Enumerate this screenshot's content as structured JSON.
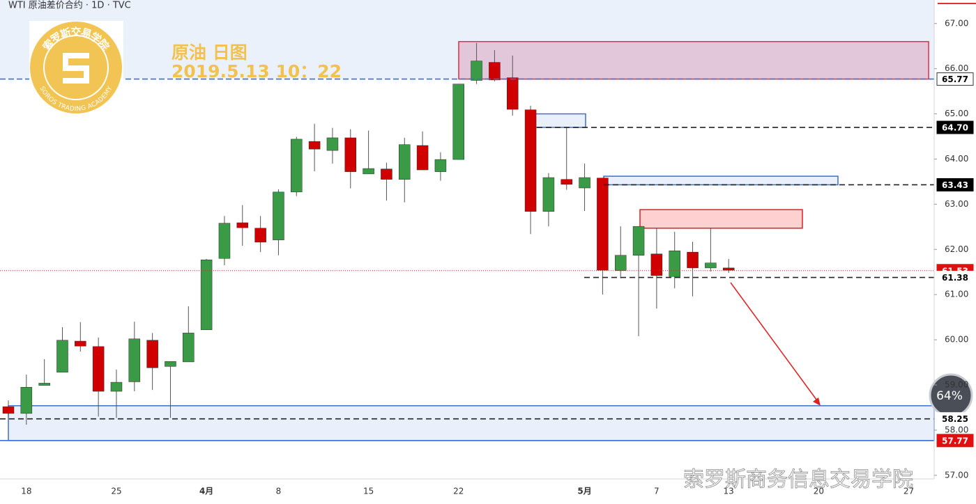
{
  "chart_data": {
    "type": "candlestick",
    "title": "WTI 原油差价合约 · 1D · TVC",
    "annotations": [
      "原油 日图",
      "2019.5.13 10：22"
    ],
    "watermark": "索罗斯商务信息交易学院",
    "logo": {
      "name": "索罗斯交易学院",
      "subtitle": "SOROS TRADING ACADEMY"
    },
    "badge": "64%",
    "up_color": "#3a9a45",
    "down_color": "#d10000",
    "grid": false,
    "categories": [
      null,
      "18",
      null,
      null,
      null,
      null,
      "25",
      null,
      null,
      null,
      null,
      "4月",
      null,
      null,
      null,
      "8",
      null,
      null,
      null,
      null,
      "15",
      null,
      null,
      null,
      null,
      "22",
      null,
      null,
      null,
      null,
      null,
      null,
      "5月",
      null,
      null,
      null,
      "7",
      null,
      null,
      null,
      "13",
      null,
      null,
      null,
      null,
      "20",
      null,
      null,
      null,
      null,
      "27"
    ],
    "open": [
      58.52,
      58.37,
      58.99,
      59.28,
      59.97,
      59.85,
      58.86,
      59.07,
      59.99,
      59.41,
      59.51,
      60.22,
      61.8,
      62.59,
      62.47,
      62.21,
      63.27,
      64.39,
      64.19,
      64.47,
      63.67,
      63.78,
      63.55,
      64.3,
      63.72,
      63.99,
      65.74,
      66.14,
      65.8,
      65.09,
      62.84,
      63.55,
      63.36,
      63.58,
      61.53,
      61.87,
      61.9,
      61.4,
      61.94,
      61.59,
      61.59,
      null,
      null,
      null,
      null,
      null,
      null,
      null,
      null,
      null,
      null
    ],
    "high": [
      58.66,
      59.23,
      59.57,
      60.28,
      60.39,
      60.05,
      59.34,
      60.4,
      60.15,
      59.52,
      60.74,
      61.79,
      62.74,
      62.98,
      62.74,
      63.33,
      64.49,
      64.78,
      64.69,
      64.66,
      64.63,
      63.92,
      64.47,
      64.61,
      64.15,
      65.66,
      66.57,
      66.41,
      66.29,
      65.18,
      63.69,
      64.7,
      63.9,
      63.58,
      62.51,
      62.51,
      62.48,
      62.39,
      62.17,
      62.47,
      61.79,
      null,
      null,
      null,
      null,
      null,
      null,
      null,
      null,
      null,
      null
    ],
    "low": [
      58.3,
      58.12,
      58.99,
      59.28,
      59.74,
      58.3,
      58.27,
      58.86,
      58.89,
      58.27,
      59.51,
      60.22,
      61.65,
      62.08,
      61.94,
      61.87,
      63.18,
      63.73,
      63.9,
      63.35,
      63.67,
      63.08,
      63.04,
      63.76,
      63.52,
      63.99,
      65.66,
      65.72,
      64.96,
      62.34,
      62.51,
      63.32,
      62.85,
      61.0,
      61.36,
      60.08,
      60.69,
      61.14,
      60.96,
      61.51,
      61.48,
      null,
      null,
      null,
      null,
      null,
      null,
      null,
      null,
      null,
      null
    ],
    "close": [
      58.37,
      58.95,
      59.04,
      59.99,
      59.86,
      58.86,
      59.06,
      60.02,
      59.38,
      59.52,
      60.15,
      61.77,
      62.58,
      62.48,
      62.16,
      63.27,
      64.44,
      64.22,
      64.47,
      63.72,
      63.79,
      63.55,
      64.32,
      63.76,
      63.99,
      65.66,
      66.17,
      65.75,
      65.1,
      62.84,
      63.59,
      63.44,
      63.59,
      61.54,
      61.87,
      62.51,
      61.42,
      61.97,
      61.59,
      61.7,
      61.54,
      null,
      null,
      null,
      null,
      null,
      null,
      null,
      null,
      null,
      null
    ],
    "ylim": [
      56.92,
      67.52
    ],
    "yticks": [
      {
        "value": 57,
        "label": "57.00"
      },
      {
        "value": 58,
        "label": "58.00"
      },
      {
        "value": 59,
        "label": "59.00"
      },
      {
        "value": 60,
        "label": "60.00"
      },
      {
        "value": 61,
        "label": "61.00"
      },
      {
        "value": 62,
        "label": "62.00"
      },
      {
        "value": 63,
        "label": "63.00"
      },
      {
        "value": 64,
        "label": "64.00"
      },
      {
        "value": 65,
        "label": "65.00"
      },
      {
        "value": 66,
        "label": "66.00"
      },
      {
        "value": 67,
        "label": "67.00"
      }
    ],
    "levels": [
      {
        "value": 65.77,
        "style": "blue"
      },
      {
        "value": 64.7,
        "label": "64.70",
        "style": "black"
      },
      {
        "value": 63.43,
        "style": "black"
      },
      {
        "value": 61.53,
        "style": "last"
      },
      {
        "value": 61.38,
        "style": "plain"
      },
      {
        "value": 58.25,
        "style": "plain"
      },
      {
        "value": 57.77,
        "style": "red"
      }
    ],
    "zones": [
      {
        "top": 66.6,
        "bottom": 65.77,
        "color": "pink"
      },
      {
        "top": 65.0,
        "bottom": 64.7,
        "color": "blue"
      },
      {
        "top": 63.62,
        "bottom": 63.43,
        "color": "blue"
      },
      {
        "top": 62.88,
        "bottom": 62.47,
        "color": "red"
      },
      {
        "top": 58.54,
        "bottom": 57.77,
        "color": "blue"
      }
    ]
  }
}
